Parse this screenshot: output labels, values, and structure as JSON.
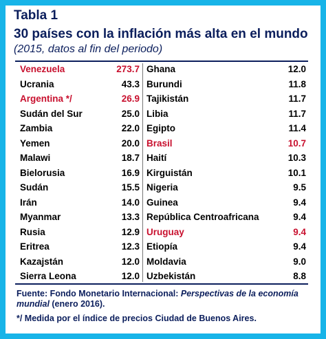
{
  "header": {
    "title": "Tabla 1",
    "subtitle": "30 países con la inflación más alta en el mundo",
    "period": "(2015, datos al fin del periodo)"
  },
  "left_rows": [
    {
      "country": "Venezuela",
      "value": "273.7",
      "highlight": true
    },
    {
      "country": "Ucrania",
      "value": "43.3",
      "highlight": false
    },
    {
      "country": "Argentina */",
      "value": "26.9",
      "highlight": true
    },
    {
      "country": "Sudán del Sur",
      "value": "25.0",
      "highlight": false
    },
    {
      "country": "Zambia",
      "value": "22.0",
      "highlight": false
    },
    {
      "country": "Yemen",
      "value": "20.0",
      "highlight": false
    },
    {
      "country": "Malawi",
      "value": "18.7",
      "highlight": false
    },
    {
      "country": "Bielorusia",
      "value": "16.9",
      "highlight": false
    },
    {
      "country": "Sudán",
      "value": "15.5",
      "highlight": false
    },
    {
      "country": "Irán",
      "value": "14.0",
      "highlight": false
    },
    {
      "country": "Myanmar",
      "value": "13.3",
      "highlight": false
    },
    {
      "country": "Rusia",
      "value": "12.9",
      "highlight": false
    },
    {
      "country": "Eritrea",
      "value": "12.3",
      "highlight": false
    },
    {
      "country": "Kazajstán",
      "value": "12.0",
      "highlight": false
    },
    {
      "country": "Sierra Leona",
      "value": "12.0",
      "highlight": false
    }
  ],
  "right_rows": [
    {
      "country": "Ghana",
      "value": "12.0",
      "highlight": false
    },
    {
      "country": "Burundi",
      "value": "11.8",
      "highlight": false
    },
    {
      "country": "Tajikistán",
      "value": "11.7",
      "highlight": false
    },
    {
      "country": "Libia",
      "value": "11.7",
      "highlight": false
    },
    {
      "country": "Egipto",
      "value": "11.4",
      "highlight": false
    },
    {
      "country": "Brasil",
      "value": "10.7",
      "highlight": true
    },
    {
      "country": "Haití",
      "value": "10.3",
      "highlight": false
    },
    {
      "country": "Kirguistán",
      "value": "10.1",
      "highlight": false
    },
    {
      "country": "Nigeria",
      "value": "9.5",
      "highlight": false
    },
    {
      "country": "Guinea",
      "value": "9.4",
      "highlight": false
    },
    {
      "country": "República Centroafricana",
      "value": "9.4",
      "highlight": false
    },
    {
      "country": "Uruguay",
      "value": "9.4",
      "highlight": true
    },
    {
      "country": "Etiopía",
      "value": "9.4",
      "highlight": false
    },
    {
      "country": "Moldavia",
      "value": "9.0",
      "highlight": false
    },
    {
      "country": "Uzbekistán",
      "value": "8.8",
      "highlight": false
    }
  ],
  "footer": {
    "source_prefix": "Fuente: Fondo Monetario Internacional: ",
    "source_italic": "Perspectivas de la economía mundial",
    "source_suffix": " (enero 2016).",
    "note": "*/ Medida por el índice de precios Ciudad de Buenos Aires."
  },
  "colors": {
    "border": "#18b4e8",
    "title": "#0b1e5c",
    "highlight": "#c8102e"
  }
}
